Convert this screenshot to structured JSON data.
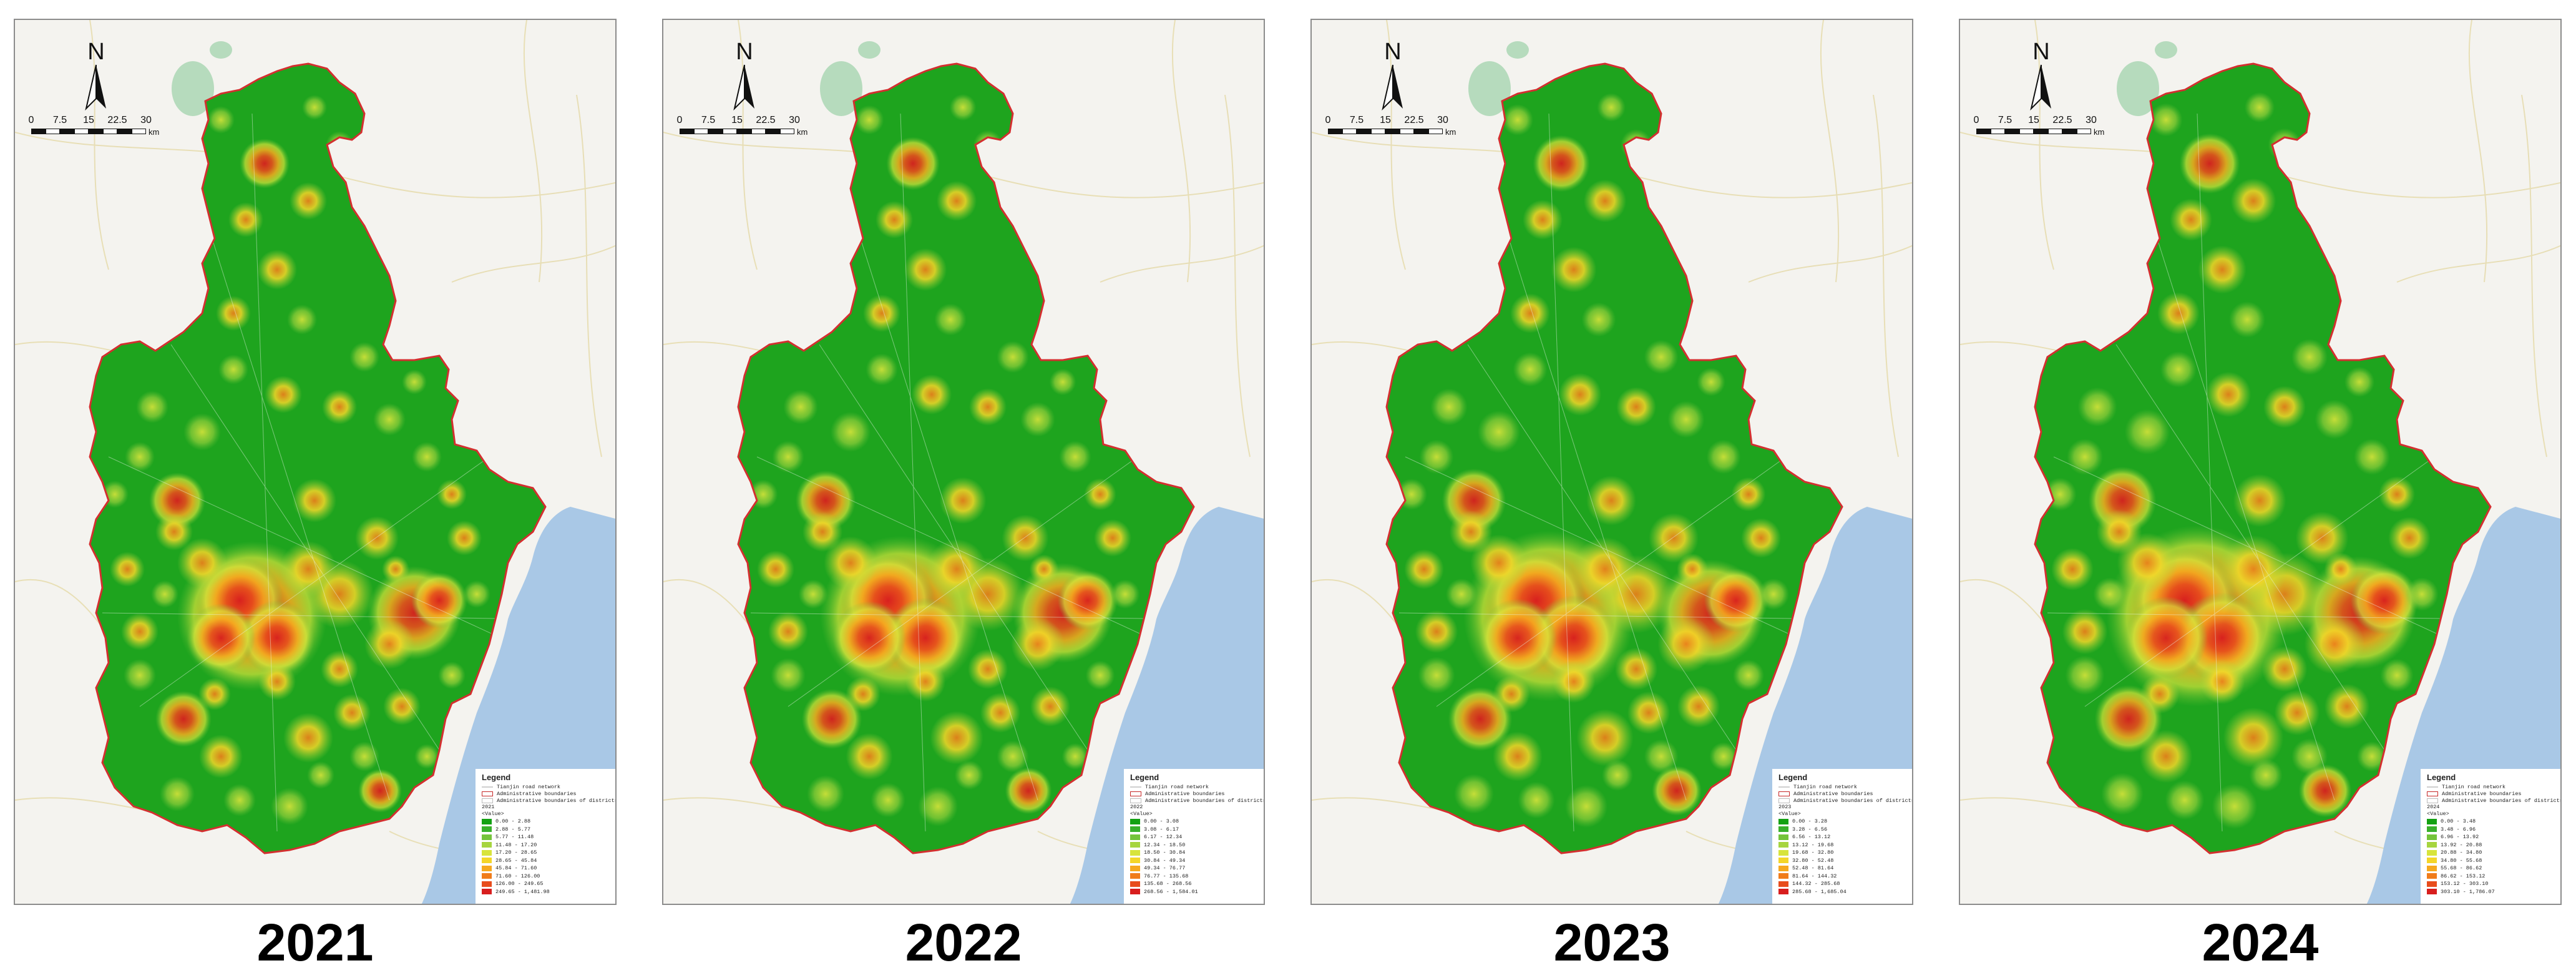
{
  "colors": {
    "background_land": "#f4f3ef",
    "sea": "#a9c8e6",
    "lake": "#b6dbbd",
    "low_density": "#1ea41e",
    "boundary": "#d32f2f",
    "road": "#e5d9a8"
  },
  "compass": {
    "label": "N"
  },
  "scale_bar": {
    "ticks": [
      "0",
      "7.5",
      "15",
      "22.5",
      "30"
    ],
    "unit": "km"
  },
  "legend": {
    "title": "Legend",
    "road_label": "Tianjin road network",
    "admin_label": "Administrative boundaries",
    "district_label": "Administrative boundaries of districts",
    "value_header": "<Value>"
  },
  "ramp_colors": [
    "#13a113",
    "#38b02b",
    "#74c43b",
    "#a6d53f",
    "#d8e43b",
    "#f4d628",
    "#f6a91f",
    "#f07c1a",
    "#e84c1c",
    "#d81e1e"
  ],
  "panels": [
    {
      "year": "2021",
      "legend_year": "2021",
      "classes": [
        "0.00 - 2.88",
        "2.88 - 5.77",
        "5.77 - 11.48",
        "11.48 - 17.20",
        "17.20 - 28.65",
        "28.65 - 45.84",
        "45.84 - 71.60",
        "71.60 - 126.00",
        "126.00 - 249.65",
        "249.65 - 1,481.98"
      ]
    },
    {
      "year": "2022",
      "legend_year": "2022",
      "classes": [
        "0.00 - 3.08",
        "3.08 - 6.17",
        "6.17 - 12.34",
        "12.34 - 18.50",
        "18.50 - 30.84",
        "30.84 - 49.34",
        "49.34 - 76.77",
        "76.77 - 135.68",
        "135.68 - 268.56",
        "268.56 - 1,584.01"
      ]
    },
    {
      "year": "2023",
      "legend_year": "2023",
      "classes": [
        "0.00 - 3.28",
        "3.28 - 6.56",
        "6.56 - 13.12",
        "13.12 - 19.68",
        "19.68 - 32.80",
        "32.80 - 52.48",
        "52.48 - 81.64",
        "81.64 - 144.32",
        "144.32 - 285.68",
        "285.68 - 1,685.04"
      ]
    },
    {
      "year": "2024",
      "legend_year": "2024",
      "classes": [
        "0.00 - 3.48",
        "3.48 - 6.96",
        "6.96 - 13.92",
        "13.92 - 20.88",
        "20.88 - 34.80",
        "34.80 - 55.68",
        "55.68 - 86.62",
        "86.62 - 153.12",
        "153.12 - 303.10",
        "303.10 - 1,786.07"
      ]
    }
  ]
}
